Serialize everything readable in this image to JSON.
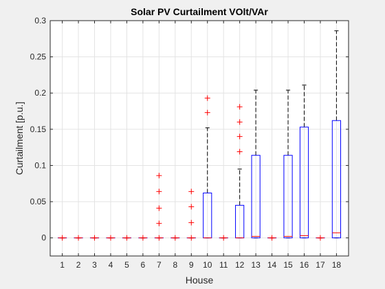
{
  "chart_data": {
    "type": "box",
    "title": "Solar PV Curtailment VOlt/VAr",
    "xlabel": "House",
    "ylabel": "Curtailment [p.u.]",
    "ylim": [
      -0.025,
      0.3
    ],
    "yticks": [
      0,
      0.05,
      0.1,
      0.15,
      0.2,
      0.25,
      0.3
    ],
    "ytick_labels": [
      "0",
      "0.05",
      "0.1",
      "0.15",
      "0.2",
      "0.25",
      "0.3"
    ],
    "categories": [
      "1",
      "2",
      "3",
      "4",
      "5",
      "6",
      "7",
      "8",
      "9",
      "10",
      "11",
      "12",
      "13",
      "14",
      "15",
      "16",
      "17",
      "18"
    ],
    "grid": true,
    "colors": {
      "box": "#0000ff",
      "median": "#ff0000",
      "whisker": "#000000",
      "outlier": "#ff0000",
      "background": "#ffffff",
      "figure": "#f0f0f0"
    },
    "boxes": [
      {
        "house": "1",
        "q1": 0,
        "median": 0,
        "q3": 0,
        "whisker_low": 0,
        "whisker_high": 0,
        "outliers": [
          0
        ]
      },
      {
        "house": "2",
        "q1": 0,
        "median": 0,
        "q3": 0,
        "whisker_low": 0,
        "whisker_high": 0,
        "outliers": [
          0
        ]
      },
      {
        "house": "3",
        "q1": 0,
        "median": 0,
        "q3": 0,
        "whisker_low": 0,
        "whisker_high": 0,
        "outliers": [
          0
        ]
      },
      {
        "house": "4",
        "q1": 0,
        "median": 0,
        "q3": 0,
        "whisker_low": 0,
        "whisker_high": 0,
        "outliers": [
          0
        ]
      },
      {
        "house": "5",
        "q1": 0,
        "median": 0,
        "q3": 0,
        "whisker_low": 0,
        "whisker_high": 0,
        "outliers": [
          0
        ]
      },
      {
        "house": "6",
        "q1": 0,
        "median": 0,
        "q3": 0,
        "whisker_low": 0,
        "whisker_high": 0,
        "outliers": [
          0
        ]
      },
      {
        "house": "7",
        "q1": 0,
        "median": 0,
        "q3": 0,
        "whisker_low": 0,
        "whisker_high": 0,
        "outliers": [
          0,
          0.02,
          0.041,
          0.064,
          0.086
        ]
      },
      {
        "house": "8",
        "q1": 0,
        "median": 0,
        "q3": 0,
        "whisker_low": 0,
        "whisker_high": 0,
        "outliers": [
          0
        ]
      },
      {
        "house": "9",
        "q1": 0,
        "median": 0,
        "q3": 0,
        "whisker_low": 0,
        "whisker_high": 0,
        "outliers": [
          0,
          0.021,
          0.043,
          0.064
        ]
      },
      {
        "house": "10",
        "q1": 0,
        "median": 0,
        "q3": 0.062,
        "whisker_low": 0,
        "whisker_high": 0.152,
        "outliers": [
          0.173,
          0.193
        ]
      },
      {
        "house": "11",
        "q1": 0,
        "median": 0,
        "q3": 0,
        "whisker_low": 0,
        "whisker_high": 0,
        "outliers": [
          0
        ]
      },
      {
        "house": "12",
        "q1": 0,
        "median": 0,
        "q3": 0.045,
        "whisker_low": 0,
        "whisker_high": 0.095,
        "outliers": [
          0.119,
          0.14,
          0.16,
          0.181
        ]
      },
      {
        "house": "13",
        "q1": 0,
        "median": 0.002,
        "q3": 0.114,
        "whisker_low": 0,
        "whisker_high": 0.204,
        "outliers": []
      },
      {
        "house": "14",
        "q1": 0,
        "median": 0,
        "q3": 0,
        "whisker_low": 0,
        "whisker_high": 0,
        "outliers": [
          0
        ]
      },
      {
        "house": "15",
        "q1": 0,
        "median": 0.002,
        "q3": 0.114,
        "whisker_low": 0,
        "whisker_high": 0.204,
        "outliers": []
      },
      {
        "house": "16",
        "q1": 0,
        "median": 0.003,
        "q3": 0.153,
        "whisker_low": 0,
        "whisker_high": 0.211,
        "outliers": []
      },
      {
        "house": "17",
        "q1": 0,
        "median": 0,
        "q3": 0,
        "whisker_low": 0,
        "whisker_high": 0,
        "outliers": [
          0
        ]
      },
      {
        "house": "18",
        "q1": 0,
        "median": 0.007,
        "q3": 0.162,
        "whisker_low": 0,
        "whisker_high": 0.286,
        "outliers": []
      }
    ]
  }
}
